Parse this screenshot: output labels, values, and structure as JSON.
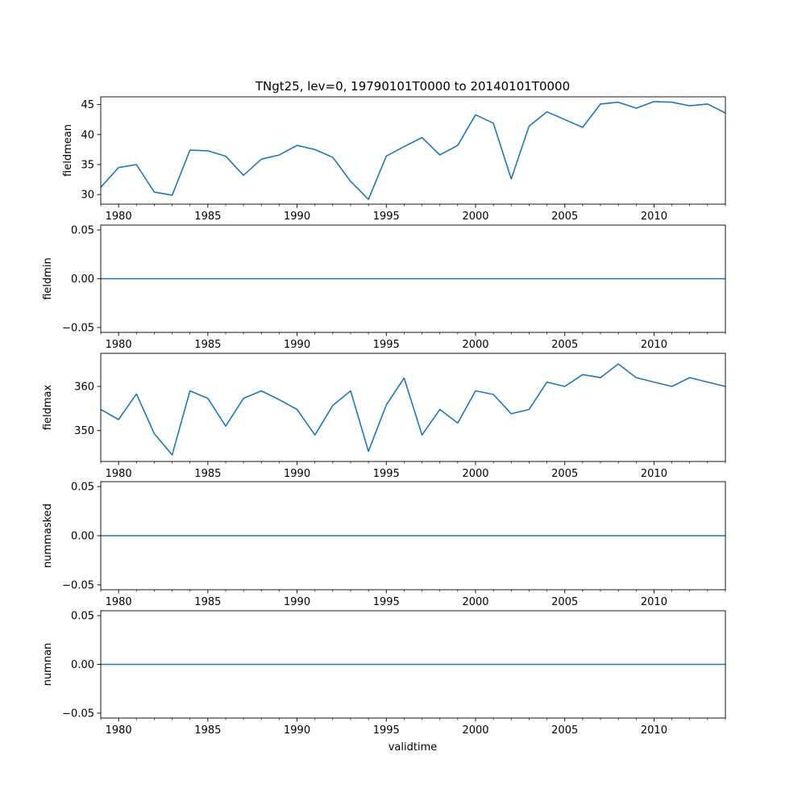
{
  "figure": {
    "title": "TNgt25, lev=0, 19790101T0000 to 20140101T0000",
    "xlabel": "validtime"
  },
  "chart_data": [
    {
      "type": "line",
      "ylabel": "fieldmean",
      "xlim": [
        1979,
        2014
      ],
      "ylim": [
        28.4,
        46.3
      ],
      "xticks": [
        1980,
        1985,
        1990,
        1995,
        2000,
        2005,
        2010
      ],
      "yticks": [
        30,
        35,
        40,
        45
      ],
      "ytick_labels": [
        "30",
        "35",
        "40",
        "45"
      ],
      "x": [
        1979,
        1980,
        1981,
        1982,
        1983,
        1984,
        1985,
        1986,
        1987,
        1988,
        1989,
        1990,
        1991,
        1992,
        1993,
        1994,
        1995,
        1996,
        1997,
        1998,
        1999,
        2000,
        2001,
        2002,
        2003,
        2004,
        2005,
        2006,
        2007,
        2008,
        2009,
        2010,
        2011,
        2012,
        2013,
        2014
      ],
      "values": [
        31.2,
        34.5,
        35.0,
        30.4,
        29.9,
        37.4,
        37.3,
        36.4,
        33.2,
        35.9,
        36.6,
        38.2,
        37.5,
        36.2,
        32.2,
        29.2,
        36.4,
        38.0,
        39.5,
        36.6,
        38.2,
        43.3,
        41.9,
        32.6,
        41.4,
        43.8,
        42.5,
        41.2,
        45.1,
        45.4,
        44.4,
        45.5,
        45.4,
        44.8,
        45.1,
        43.6
      ],
      "color": "#1f77b4"
    },
    {
      "type": "line",
      "ylabel": "fieldmin",
      "xlim": [
        1979,
        2014
      ],
      "ylim": [
        -0.055,
        0.055
      ],
      "xticks": [
        1980,
        1985,
        1990,
        1995,
        2000,
        2005,
        2010
      ],
      "yticks": [
        -0.05,
        0.0,
        0.05
      ],
      "ytick_labels": [
        "−0.05",
        "0.00",
        "0.05"
      ],
      "x": [
        1979,
        1980,
        1981,
        1982,
        1983,
        1984,
        1985,
        1986,
        1987,
        1988,
        1989,
        1990,
        1991,
        1992,
        1993,
        1994,
        1995,
        1996,
        1997,
        1998,
        1999,
        2000,
        2001,
        2002,
        2003,
        2004,
        2005,
        2006,
        2007,
        2008,
        2009,
        2010,
        2011,
        2012,
        2013,
        2014
      ],
      "values": [
        0,
        0,
        0,
        0,
        0,
        0,
        0,
        0,
        0,
        0,
        0,
        0,
        0,
        0,
        0,
        0,
        0,
        0,
        0,
        0,
        0,
        0,
        0,
        0,
        0,
        0,
        0,
        0,
        0,
        0,
        0,
        0,
        0,
        0,
        0,
        0
      ],
      "color": "#1f77b4"
    },
    {
      "type": "line",
      "ylabel": "fieldmax",
      "xlim": [
        1979,
        2014
      ],
      "ylim": [
        343.0,
        367.5
      ],
      "xticks": [
        1980,
        1985,
        1990,
        1995,
        2000,
        2005,
        2010
      ],
      "yticks": [
        350,
        360
      ],
      "ytick_labels": [
        "350",
        "360"
      ],
      "x": [
        1979,
        1980,
        1981,
        1982,
        1983,
        1984,
        1985,
        1986,
        1987,
        1988,
        1989,
        1990,
        1991,
        1992,
        1993,
        1994,
        1995,
        1996,
        1997,
        1998,
        1999,
        2000,
        2001,
        2002,
        2003,
        2004,
        2005,
        2006,
        2007,
        2008,
        2009,
        2010,
        2011,
        2012,
        2013,
        2014
      ],
      "values": [
        354.8,
        352.5,
        358.3,
        349.3,
        344.5,
        359.0,
        357.3,
        351.0,
        357.3,
        359.0,
        357.0,
        354.8,
        349.0,
        355.7,
        359.0,
        345.3,
        355.8,
        361.9,
        349.0,
        354.8,
        351.7,
        359.0,
        358.2,
        353.8,
        354.8,
        361.0,
        360.0,
        362.7,
        362.0,
        365.1,
        362.0,
        361.0,
        360.0,
        362.0,
        361.0,
        360.0
      ],
      "color": "#1f77b4"
    },
    {
      "type": "line",
      "ylabel": "nummasked",
      "xlim": [
        1979,
        2014
      ],
      "ylim": [
        -0.055,
        0.055
      ],
      "xticks": [
        1980,
        1985,
        1990,
        1995,
        2000,
        2005,
        2010
      ],
      "yticks": [
        -0.05,
        0.0,
        0.05
      ],
      "ytick_labels": [
        "−0.05",
        "0.00",
        "0.05"
      ],
      "x": [
        1979,
        1980,
        1981,
        1982,
        1983,
        1984,
        1985,
        1986,
        1987,
        1988,
        1989,
        1990,
        1991,
        1992,
        1993,
        1994,
        1995,
        1996,
        1997,
        1998,
        1999,
        2000,
        2001,
        2002,
        2003,
        2004,
        2005,
        2006,
        2007,
        2008,
        2009,
        2010,
        2011,
        2012,
        2013,
        2014
      ],
      "values": [
        0,
        0,
        0,
        0,
        0,
        0,
        0,
        0,
        0,
        0,
        0,
        0,
        0,
        0,
        0,
        0,
        0,
        0,
        0,
        0,
        0,
        0,
        0,
        0,
        0,
        0,
        0,
        0,
        0,
        0,
        0,
        0,
        0,
        0,
        0,
        0
      ],
      "color": "#1f77b4"
    },
    {
      "type": "line",
      "ylabel": "numnan",
      "xlim": [
        1979,
        2014
      ],
      "ylim": [
        -0.055,
        0.055
      ],
      "xticks": [
        1980,
        1985,
        1990,
        1995,
        2000,
        2005,
        2010
      ],
      "yticks": [
        -0.05,
        0.0,
        0.05
      ],
      "ytick_labels": [
        "−0.05",
        "0.00",
        "0.05"
      ],
      "x": [
        1979,
        1980,
        1981,
        1982,
        1983,
        1984,
        1985,
        1986,
        1987,
        1988,
        1989,
        1990,
        1991,
        1992,
        1993,
        1994,
        1995,
        1996,
        1997,
        1998,
        1999,
        2000,
        2001,
        2002,
        2003,
        2004,
        2005,
        2006,
        2007,
        2008,
        2009,
        2010,
        2011,
        2012,
        2013,
        2014
      ],
      "values": [
        0,
        0,
        0,
        0,
        0,
        0,
        0,
        0,
        0,
        0,
        0,
        0,
        0,
        0,
        0,
        0,
        0,
        0,
        0,
        0,
        0,
        0,
        0,
        0,
        0,
        0,
        0,
        0,
        0,
        0,
        0,
        0,
        0,
        0,
        0,
        0
      ],
      "color": "#1f77b4"
    }
  ]
}
